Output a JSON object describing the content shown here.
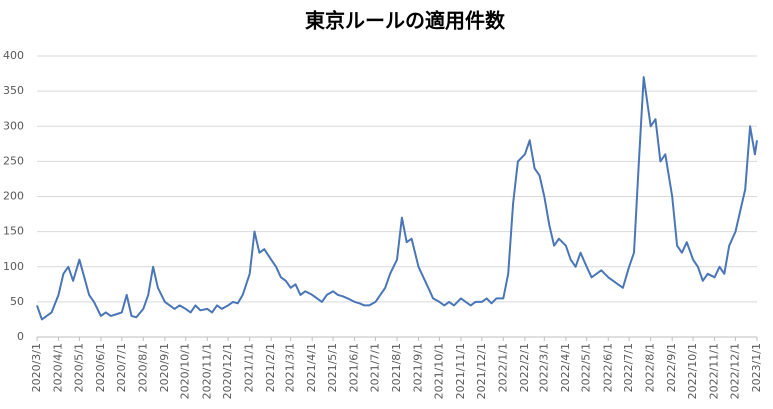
{
  "chart_data": {
    "type": "line",
    "title": "東京ルールの適用件数",
    "color": "#4a76b8",
    "grid": true,
    "xlim": [
      "2020/3/1",
      "2023/1/1"
    ],
    "xticks": [
      "2020/3/1",
      "2020/4/1",
      "2020/5/1",
      "2020/6/1",
      "2020/7/1",
      "2020/8/1",
      "2020/9/1",
      "2020/10/1",
      "2020/11/1",
      "2020/12/1",
      "2021/1/1",
      "2021/2/1",
      "2021/3/1",
      "2021/4/1",
      "2021/5/1",
      "2021/6/1",
      "2021/7/1",
      "2021/8/1",
      "2021/9/1",
      "2021/10/1",
      "2021/11/1",
      "2021/12/1",
      "2022/1/1",
      "2022/2/1",
      "2022/3/1",
      "2022/4/1",
      "2022/5/1",
      "2022/6/1",
      "2022/7/1",
      "2022/8/1",
      "2022/9/1",
      "2022/10/1",
      "2022/11/1",
      "2022/12/1",
      "2023/1/1"
    ],
    "ylim": [
      0,
      400
    ],
    "yticks": [
      0,
      50,
      100,
      150,
      200,
      250,
      300,
      350,
      400
    ],
    "x": [
      "2020/3/1",
      "2020/3/8",
      "2020/3/15",
      "2020/3/22",
      "2020/4/1",
      "2020/4/8",
      "2020/4/15",
      "2020/4/22",
      "2020/5/1",
      "2020/5/8",
      "2020/5/15",
      "2020/5/22",
      "2020/6/1",
      "2020/6/8",
      "2020/6/15",
      "2020/6/22",
      "2020/7/1",
      "2020/7/8",
      "2020/7/15",
      "2020/7/22",
      "2020/8/1",
      "2020/8/8",
      "2020/8/15",
      "2020/8/22",
      "2020/9/1",
      "2020/9/8",
      "2020/9/15",
      "2020/9/22",
      "2020/10/1",
      "2020/10/8",
      "2020/10/15",
      "2020/10/22",
      "2020/11/1",
      "2020/11/8",
      "2020/11/15",
      "2020/11/22",
      "2020/12/1",
      "2020/12/8",
      "2020/12/15",
      "2020/12/22",
      "2021/1/1",
      "2021/1/8",
      "2021/1/15",
      "2021/1/22",
      "2021/2/1",
      "2021/2/8",
      "2021/2/15",
      "2021/2/22",
      "2021/3/1",
      "2021/3/8",
      "2021/3/15",
      "2021/3/22",
      "2021/4/1",
      "2021/4/8",
      "2021/4/15",
      "2021/4/22",
      "2021/5/1",
      "2021/5/8",
      "2021/5/15",
      "2021/5/22",
      "2021/6/1",
      "2021/6/8",
      "2021/6/15",
      "2021/6/22",
      "2021/7/1",
      "2021/7/8",
      "2021/7/15",
      "2021/7/22",
      "2021/8/1",
      "2021/8/8",
      "2021/8/15",
      "2021/8/22",
      "2021/9/1",
      "2021/9/8",
      "2021/9/15",
      "2021/9/22",
      "2021/10/1",
      "2021/10/8",
      "2021/10/15",
      "2021/10/22",
      "2021/11/1",
      "2021/11/8",
      "2021/11/15",
      "2021/11/22",
      "2021/12/1",
      "2021/12/8",
      "2021/12/15",
      "2021/12/22",
      "2022/1/1",
      "2022/1/8",
      "2022/1/15",
      "2022/1/22",
      "2022/2/1",
      "2022/2/8",
      "2022/2/15",
      "2022/2/22",
      "2022/3/1",
      "2022/3/8",
      "2022/3/15",
      "2022/3/22",
      "2022/4/1",
      "2022/4/8",
      "2022/4/15",
      "2022/4/22",
      "2022/5/1",
      "2022/5/8",
      "2022/5/15",
      "2022/5/22",
      "2022/6/1",
      "2022/6/8",
      "2022/6/15",
      "2022/6/22",
      "2022/7/1",
      "2022/7/8",
      "2022/7/15",
      "2022/7/22",
      "2022/8/1",
      "2022/8/8",
      "2022/8/15",
      "2022/8/22",
      "2022/9/1",
      "2022/9/8",
      "2022/9/15",
      "2022/9/22",
      "2022/10/1",
      "2022/10/8",
      "2022/10/15",
      "2022/10/22",
      "2022/11/1",
      "2022/11/8",
      "2022/11/15",
      "2022/11/22",
      "2022/12/1",
      "2022/12/8",
      "2022/12/15",
      "2022/12/22",
      "2022/12/29",
      "2023/1/1"
    ],
    "values": [
      45,
      25,
      30,
      35,
      60,
      90,
      100,
      80,
      110,
      85,
      60,
      50,
      30,
      35,
      30,
      32,
      35,
      60,
      30,
      28,
      40,
      60,
      100,
      70,
      50,
      45,
      40,
      45,
      40,
      35,
      45,
      38,
      40,
      35,
      45,
      40,
      45,
      50,
      48,
      60,
      90,
      150,
      120,
      125,
      110,
      100,
      85,
      80,
      70,
      75,
      60,
      65,
      60,
      55,
      50,
      60,
      65,
      60,
      58,
      55,
      50,
      48,
      45,
      45,
      50,
      60,
      70,
      90,
      110,
      170,
      135,
      140,
      100,
      85,
      70,
      55,
      50,
      45,
      50,
      45,
      55,
      50,
      45,
      50,
      50,
      55,
      48,
      55,
      55,
      90,
      190,
      250,
      260,
      280,
      240,
      230,
      200,
      160,
      130,
      140,
      130,
      110,
      100,
      120,
      100,
      85,
      90,
      95,
      85,
      80,
      75,
      70,
      100,
      120,
      250,
      370,
      300,
      310,
      250,
      260,
      200,
      130,
      120,
      135,
      110,
      100,
      80,
      90,
      85,
      100,
      90,
      130,
      150,
      180,
      210,
      300,
      260,
      280
    ]
  }
}
